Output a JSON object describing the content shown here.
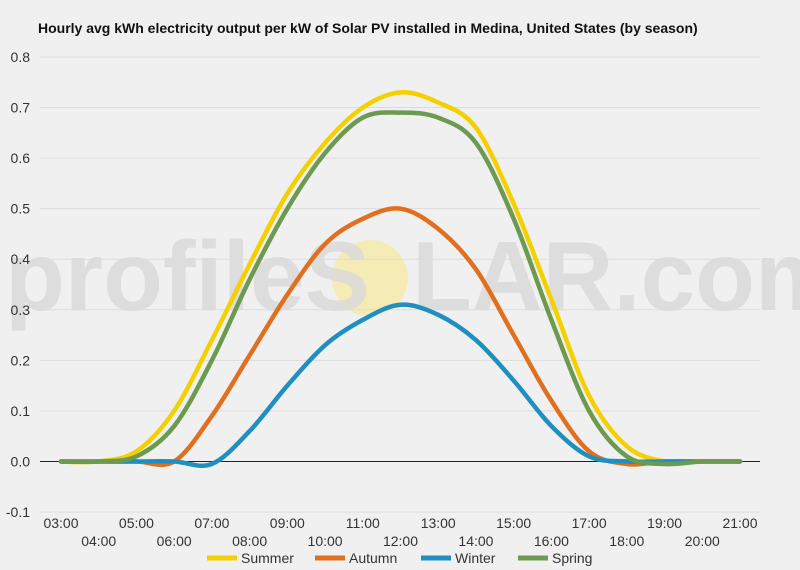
{
  "chart_data": {
    "type": "line",
    "title": "Hourly avg kWh electricity output per kW of Solar PV installed in Medina, United States (by season)",
    "xlabel": "",
    "ylabel": "",
    "x": [
      "03:00",
      "04:00",
      "05:00",
      "06:00",
      "07:00",
      "08:00",
      "09:00",
      "10:00",
      "11:00",
      "12:00",
      "13:00",
      "14:00",
      "15:00",
      "16:00",
      "17:00",
      "18:00",
      "19:00",
      "20:00",
      "21:00"
    ],
    "ylim": [
      -0.1,
      0.8
    ],
    "yticks": [
      "0.8",
      "0.7",
      "0.6",
      "0.5",
      "0.4",
      "0.3",
      "0.2",
      "0.1",
      "0.0",
      "-0.1"
    ],
    "grid": true,
    "legend_position": "bottom",
    "series": [
      {
        "name": "Summer",
        "color": "#f5d000",
        "values": [
          0.0,
          0.0,
          0.02,
          0.1,
          0.24,
          0.39,
          0.53,
          0.63,
          0.7,
          0.73,
          0.71,
          0.66,
          0.51,
          0.32,
          0.13,
          0.03,
          0.0,
          0.0,
          0.0
        ]
      },
      {
        "name": "Autumn",
        "color": "#e07020",
        "values": [
          0.0,
          0.0,
          0.0,
          0.0,
          0.09,
          0.21,
          0.33,
          0.43,
          0.48,
          0.5,
          0.46,
          0.38,
          0.25,
          0.12,
          0.02,
          -0.005,
          0.0,
          0.0,
          0.0
        ]
      },
      {
        "name": "Winter",
        "color": "#1f8fc0",
        "values": [
          0.0,
          0.0,
          0.0,
          0.0,
          -0.005,
          0.06,
          0.15,
          0.23,
          0.28,
          0.31,
          0.29,
          0.24,
          0.16,
          0.07,
          0.01,
          0.0,
          0.0,
          0.0,
          0.0
        ]
      },
      {
        "name": "Spring",
        "color": "#6b9a50",
        "values": [
          0.0,
          0.0,
          0.01,
          0.07,
          0.2,
          0.36,
          0.5,
          0.61,
          0.68,
          0.69,
          0.68,
          0.63,
          0.48,
          0.28,
          0.1,
          0.01,
          -0.005,
          0.0,
          0.0
        ]
      }
    ]
  },
  "watermark": {
    "text_left": "profileS",
    "text_right": "LAR.com",
    "sun_color": "#f7e9a0"
  }
}
